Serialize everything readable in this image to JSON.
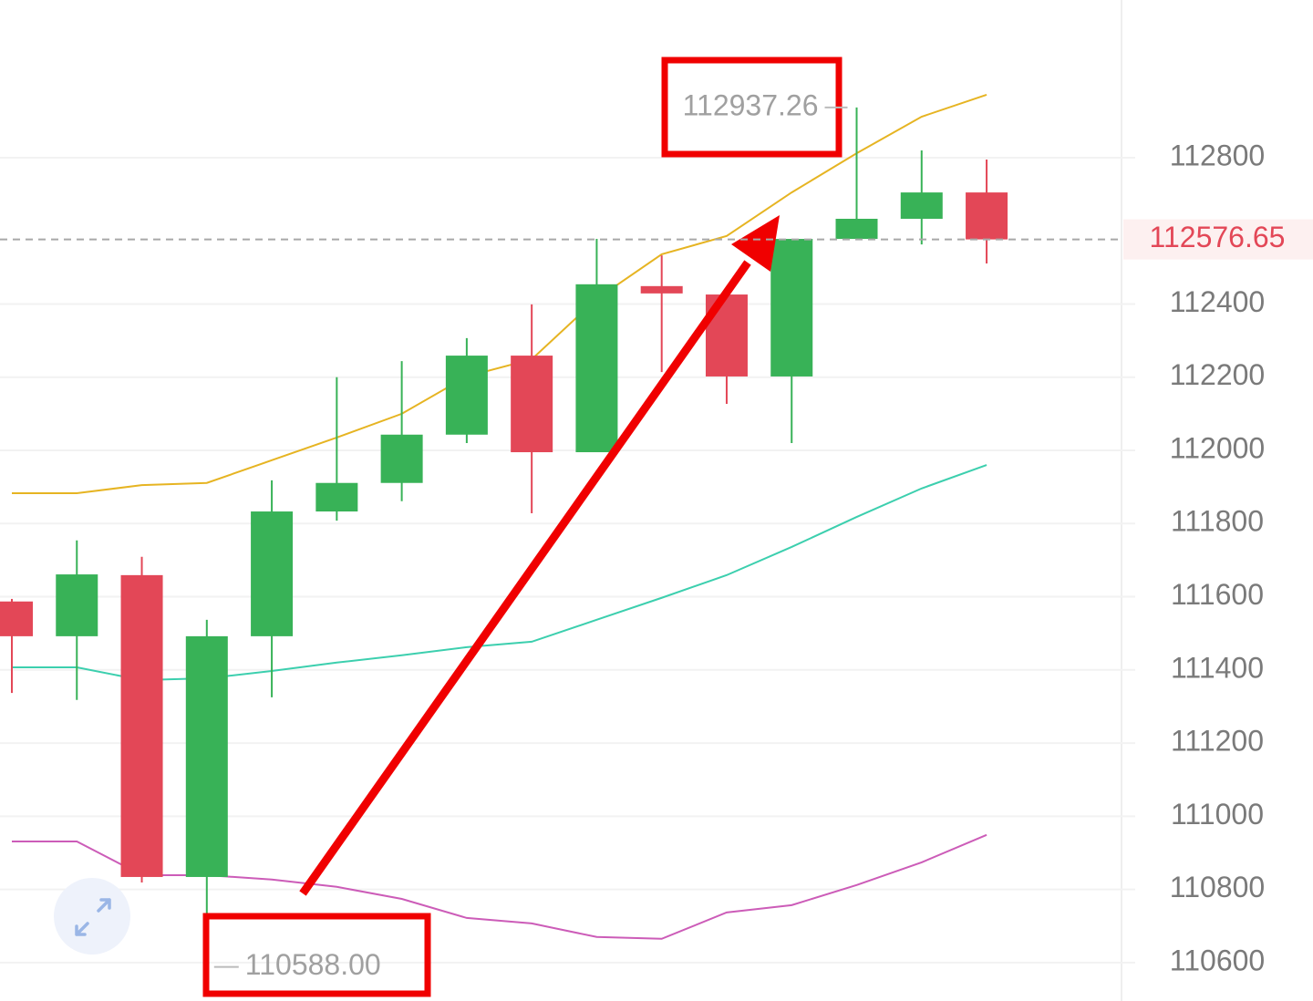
{
  "chart_data": {
    "type": "candlestick",
    "categories": [
      null,
      null,
      null,
      null,
      null,
      null,
      null,
      null,
      null,
      null,
      null,
      null,
      null,
      null,
      null,
      null
    ],
    "series": [
      {
        "name": null,
        "kind": "candles",
        "up_color": "#38b257",
        "down_color": "#e34757",
        "open": [
          111587,
          111492,
          111659,
          110834,
          111492,
          111833,
          111911,
          112043,
          112259,
          111995,
          112449,
          112426,
          112202,
          112578,
          112633,
          112705
        ],
        "high": [
          111594,
          111754,
          111709,
          111537,
          111918,
          112200,
          112244,
          112307,
          112399,
          112578,
          112533,
          112426,
          112578,
          112937.26,
          112820,
          112795
        ],
        "low": [
          111337,
          111318,
          110819,
          110588,
          111325,
          111808,
          111861,
          112020,
          111828,
          111995,
          112214,
          112127,
          112020,
          112578,
          112563,
          112511
        ],
        "close": [
          111492,
          111661,
          110834,
          111492,
          111833,
          111911,
          112043,
          112259,
          111995,
          112454,
          112429,
          112202,
          112578,
          112633,
          112705,
          112576.65
        ]
      },
      {
        "name": null,
        "kind": "line",
        "color": "#e6b422",
        "values": [
          111883,
          111883,
          111905,
          111911,
          111973,
          112035,
          112100,
          112202,
          112249,
          112414,
          112536,
          112586,
          112705,
          112812,
          112912,
          112972
        ]
      },
      {
        "name": null,
        "kind": "line",
        "color": "#3ccfae",
        "values": [
          111407,
          111407,
          111372,
          111377,
          111397,
          111420,
          111440,
          111462,
          111477,
          111537,
          111597,
          111659,
          111736,
          111818,
          111896,
          111960
        ]
      },
      {
        "name": null,
        "kind": "line",
        "color": "#cc5cb8",
        "values": [
          110931,
          110931,
          110839,
          110839,
          110827,
          110807,
          110774,
          110722,
          110707,
          110670,
          110665,
          110737,
          110757,
          110812,
          110874,
          110949
        ]
      }
    ],
    "ylim": [
      110495,
      113231
    ],
    "yticks": [
      110600,
      110800,
      111000,
      111200,
      111400,
      111600,
      111800,
      112000,
      112200,
      112400,
      112800
    ],
    "grid": true,
    "last_price": {
      "value": 112576.65,
      "label": "112576.65",
      "color": "#e34757"
    },
    "annotations": [
      {
        "value": 112937.26,
        "label": "112937.26"
      },
      {
        "value": 110588,
        "label": "110588.00"
      }
    ]
  }
}
